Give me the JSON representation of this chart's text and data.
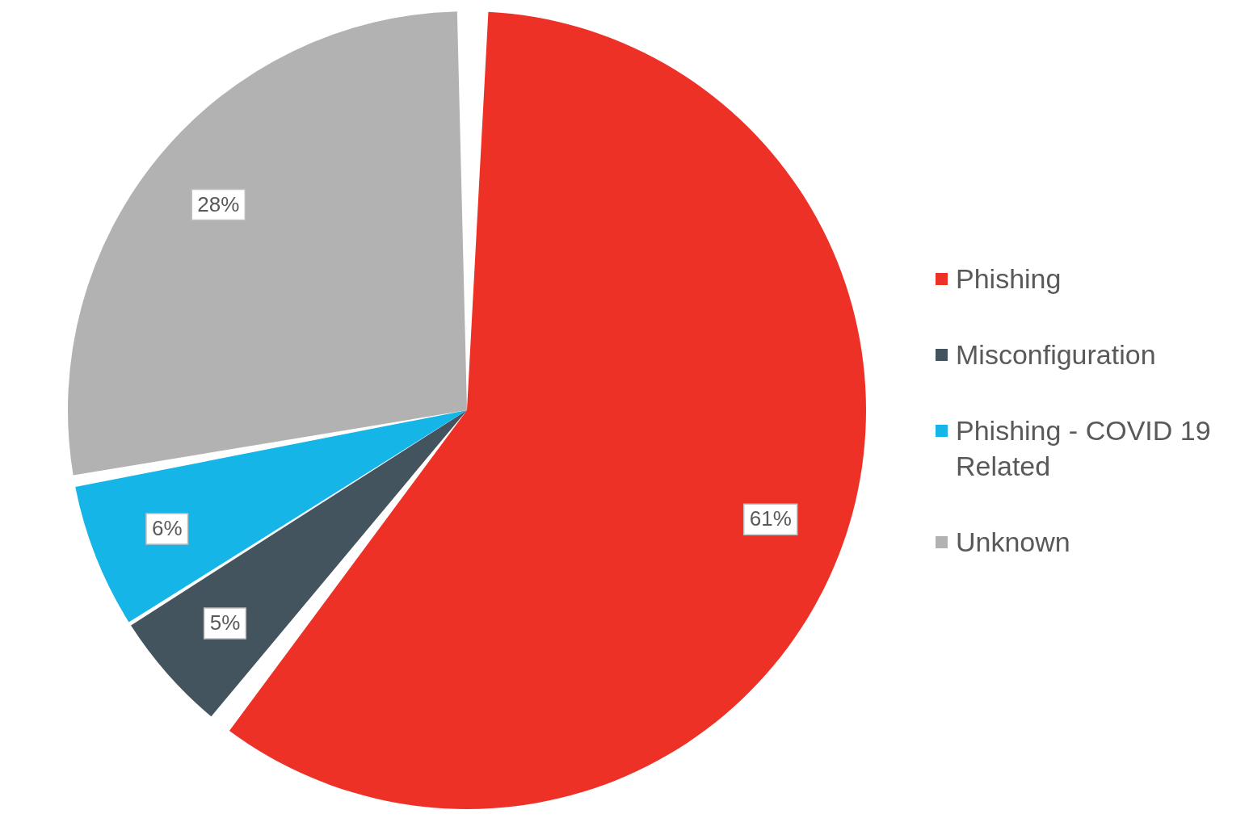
{
  "chart_data": {
    "type": "pie",
    "categories": [
      "Phishing",
      "Misconfiguration",
      "Phishing - COVID 19 Related",
      "Unknown"
    ],
    "values": [
      61,
      5,
      6,
      28
    ],
    "colors": [
      "#ee3127",
      "#44545f",
      "#16b5e8",
      "#b2b2b2"
    ],
    "value_labels": [
      "61%",
      "5%",
      "6%",
      "28%"
    ],
    "legend": "right"
  }
}
